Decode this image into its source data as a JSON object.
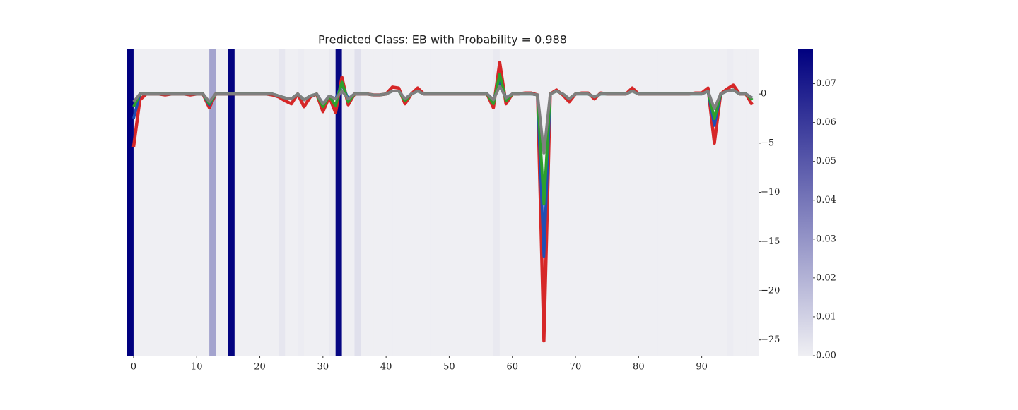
{
  "chart_data": {
    "type": "line",
    "title": "Predicted Class: EB with Probability = 0.988",
    "x": [
      0,
      1,
      2,
      3,
      4,
      5,
      6,
      7,
      8,
      9,
      10,
      11,
      12,
      13,
      14,
      15,
      16,
      17,
      18,
      19,
      20,
      21,
      22,
      23,
      24,
      25,
      26,
      27,
      28,
      29,
      30,
      31,
      32,
      33,
      34,
      35,
      36,
      37,
      38,
      39,
      40,
      41,
      42,
      43,
      44,
      45,
      46,
      47,
      48,
      49,
      50,
      51,
      52,
      53,
      54,
      55,
      56,
      57,
      58,
      59,
      60,
      61,
      62,
      63,
      64,
      65,
      66,
      67,
      68,
      69,
      70,
      71,
      72,
      73,
      74,
      75,
      76,
      77,
      78,
      79,
      80,
      81,
      82,
      83,
      84,
      85,
      86,
      87,
      88,
      89,
      90,
      91,
      92,
      93,
      94,
      95,
      96,
      97,
      98
    ],
    "series": [
      {
        "color": "#d62728",
        "values": [
          -5.4,
          -0.6,
          0,
          0,
          0,
          -0.1,
          0,
          0,
          0,
          -0.1,
          0,
          0,
          -1.4,
          0,
          0,
          0,
          0,
          0,
          0,
          0,
          0,
          0,
          -0.1,
          -0.3,
          -0.7,
          -1,
          0,
          -1.3,
          -0.3,
          0,
          -1.8,
          -0.3,
          -1.9,
          1.7,
          -1.1,
          0,
          0,
          0,
          -0.1,
          -0.1,
          0,
          0.7,
          0.6,
          -1,
          0,
          0.6,
          0,
          0,
          0,
          0,
          0,
          0,
          0,
          0,
          0,
          0,
          0,
          -1.4,
          3.2,
          -1,
          0,
          0,
          0.1,
          0.1,
          -0.1,
          -25.1,
          0,
          0.4,
          -0.1,
          -0.8,
          0,
          0.1,
          0.1,
          -0.5,
          0.1,
          0,
          0,
          0,
          0,
          0.6,
          0,
          0,
          0,
          0,
          0,
          0,
          0,
          0,
          0,
          0.1,
          0.1,
          0.6,
          -5,
          0,
          0.5,
          0.9,
          0,
          0,
          -1.1
        ]
      },
      {
        "color": "#1f4fb4",
        "values": [
          -2.5,
          0,
          0,
          0,
          0,
          0,
          0,
          0,
          0,
          0,
          0,
          0,
          -1.1,
          0,
          0,
          0,
          0,
          0,
          0,
          0,
          0,
          0,
          0,
          -0.2,
          -0.4,
          -0.5,
          0,
          -0.6,
          -0.2,
          0,
          -1,
          -0.2,
          -0.5,
          1,
          -0.5,
          0,
          0,
          0,
          -0.1,
          -0.1,
          0,
          0.3,
          0.3,
          -0.5,
          0,
          0.3,
          0,
          0,
          0,
          0,
          0,
          0,
          0,
          0,
          0,
          0,
          0,
          -0.6,
          1.2,
          -0.4,
          0,
          0,
          0,
          0,
          -0.1,
          -16.5,
          0,
          0.3,
          0,
          -0.5,
          0,
          0,
          0,
          -0.3,
          0,
          0,
          0,
          0,
          0,
          0.3,
          0,
          0,
          0,
          0,
          0,
          0,
          0,
          0,
          0,
          0,
          0,
          0.3,
          -3.2,
          0,
          0.3,
          0.4,
          0,
          0,
          -0.4
        ]
      },
      {
        "color": "#2ca02c",
        "values": [
          -1.3,
          0,
          0,
          0,
          0,
          0,
          0,
          0,
          0,
          0,
          0,
          0,
          -1,
          0,
          0,
          0,
          0,
          0,
          0,
          0,
          0,
          0,
          0,
          -0.2,
          -0.4,
          -0.5,
          0,
          -0.6,
          -0.2,
          0,
          -1.3,
          -0.2,
          -1.2,
          1.2,
          -0.8,
          0,
          0,
          0,
          -0.1,
          -0.1,
          0,
          0.3,
          0.3,
          -0.7,
          0,
          0.3,
          0,
          0,
          0,
          0,
          0,
          0,
          0,
          0,
          0,
          0,
          0,
          -1,
          2,
          -0.7,
          0,
          0,
          0,
          0,
          -0.1,
          -11.2,
          0,
          0.3,
          0,
          -0.5,
          0,
          0,
          0,
          -0.3,
          0,
          0,
          0,
          0,
          0,
          0.3,
          0,
          0,
          0,
          0,
          0,
          0,
          0,
          0,
          0,
          0,
          0,
          0.3,
          -2.5,
          0,
          0.3,
          0.4,
          0,
          0,
          -0.6
        ]
      },
      {
        "color": "#7f7f7f",
        "values": [
          -0.8,
          0,
          0,
          0,
          0,
          0,
          0,
          0,
          0,
          0,
          0,
          0,
          -0.8,
          0,
          0,
          0,
          0,
          0,
          0,
          0,
          0,
          0,
          0,
          -0.2,
          -0.4,
          -0.5,
          0,
          -0.6,
          -0.2,
          0,
          -1,
          -0.2,
          -0.5,
          0.3,
          -0.5,
          0,
          0,
          0,
          -0.1,
          -0.1,
          0,
          0.3,
          0.3,
          -0.5,
          0,
          0.3,
          0,
          0,
          0,
          0,
          0,
          0,
          0,
          0,
          0,
          0,
          0,
          -0.6,
          0.8,
          -0.4,
          0,
          0,
          0,
          0,
          -0.1,
          -6,
          0,
          0.3,
          0,
          -0.5,
          0,
          0,
          0,
          -0.3,
          0,
          0,
          0,
          0,
          0,
          0.3,
          0,
          0,
          0,
          0,
          0,
          0,
          0,
          0,
          0,
          0,
          0,
          0.3,
          -1.5,
          0,
          0.3,
          0.4,
          0,
          0,
          -0.4
        ]
      }
    ],
    "heatmap": {
      "bins": [
        -1,
        0,
        1,
        2,
        3,
        4,
        5,
        6,
        7,
        8,
        9,
        10,
        11,
        12,
        13,
        14,
        15,
        16,
        17,
        18,
        19,
        20,
        21,
        22,
        23,
        24,
        25,
        26,
        27,
        28,
        29,
        30,
        31,
        32,
        33,
        34,
        35,
        36,
        37,
        38,
        39,
        40,
        41,
        42,
        43,
        44,
        45,
        46,
        47,
        48,
        49,
        50,
        51,
        52,
        53,
        54,
        55,
        56,
        57,
        58,
        59,
        60,
        61,
        62,
        63,
        64,
        65,
        66,
        67,
        68,
        69,
        70,
        71,
        72,
        73,
        74,
        75,
        76,
        77,
        78,
        79,
        80,
        81,
        82,
        83,
        84,
        85,
        86,
        87,
        88,
        89,
        90,
        91,
        92,
        93,
        94,
        95,
        96,
        97,
        98,
        99
      ],
      "values": [
        0.079,
        0,
        0,
        0,
        0,
        0,
        0,
        0,
        0,
        0,
        0,
        0,
        0,
        0.025,
        0,
        0,
        0.078,
        0,
        0,
        0,
        0,
        0,
        0,
        0,
        0.003,
        0,
        0,
        0.001,
        0,
        0,
        0,
        0,
        0.002,
        0.077,
        0,
        0,
        0.005,
        0,
        0,
        0,
        0,
        0,
        0,
        0,
        0,
        0,
        0,
        0,
        0,
        0,
        0,
        0,
        0,
        0,
        0,
        0,
        0,
        0,
        0.002,
        0,
        0,
        0,
        0,
        0,
        0,
        0,
        0,
        0,
        0,
        0,
        0,
        0,
        0,
        0,
        0,
        0,
        0,
        0,
        0,
        0,
        0,
        0,
        0,
        0,
        0,
        0,
        0,
        0,
        0,
        0,
        0,
        0,
        0,
        0,
        0,
        0.001,
        0,
        0,
        0,
        0
      ],
      "cmap": [
        "#efeff3",
        "#00007f"
      ],
      "clim": [
        0,
        0.079
      ],
      "cticks": [
        {
          "value": 0,
          "label": "0.00"
        },
        {
          "value": 0.01,
          "label": "0.01"
        },
        {
          "value": 0.02,
          "label": "0.02"
        },
        {
          "value": 0.03,
          "label": "0.03"
        },
        {
          "value": 0.04,
          "label": "0.04"
        },
        {
          "value": 0.05,
          "label": "0.05"
        },
        {
          "value": 0.06,
          "label": "0.06"
        },
        {
          "value": 0.07,
          "label": "0.07"
        }
      ]
    },
    "xlim": [
      -1,
      99
    ],
    "ylim": [
      -26.6,
      4.6
    ],
    "xticks": [
      0,
      10,
      20,
      30,
      40,
      50,
      60,
      70,
      80,
      90
    ],
    "yticks": [
      0,
      {
        "value": -5,
        "label": "−5"
      },
      {
        "value": -10,
        "label": "−10"
      },
      {
        "value": -15,
        "label": "−15"
      },
      {
        "value": -20,
        "label": "−20"
      },
      {
        "value": -25,
        "label": "−25"
      }
    ],
    "yaxis_side": "right"
  }
}
